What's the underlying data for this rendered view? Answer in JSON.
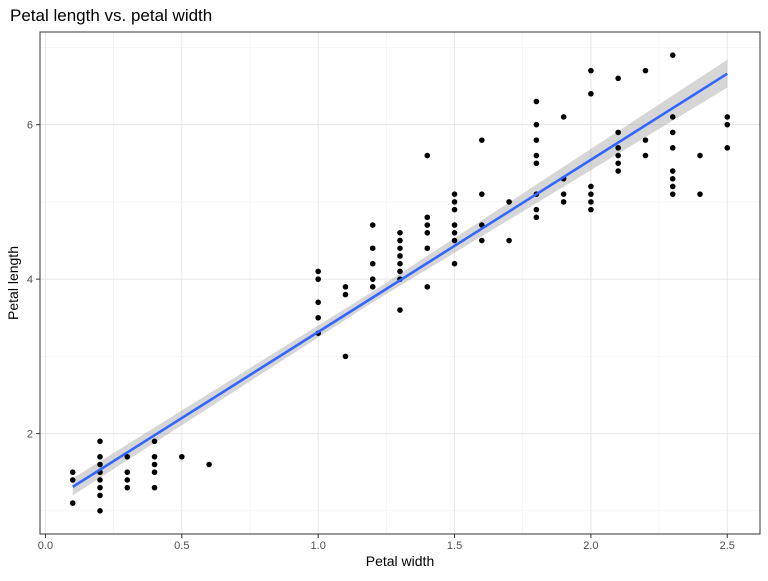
{
  "chart_data": {
    "type": "scatter",
    "title": "Petal length vs. petal width",
    "xlabel": "Petal width",
    "ylabel": "Petal length",
    "xlim": [
      -0.02,
      2.62
    ],
    "ylim": [
      0.7,
      7.2
    ],
    "x_ticks": [
      0.0,
      0.5,
      1.0,
      1.5,
      2.0,
      2.5
    ],
    "x_tick_labels": [
      "0.0",
      "0.5",
      "1.0",
      "1.5",
      "2.0",
      "2.5"
    ],
    "y_ticks": [
      2,
      4,
      6
    ],
    "y_tick_labels": [
      "2",
      "4",
      "6"
    ],
    "grid": true,
    "point_color": "#000000",
    "series": [
      {
        "type": "scatter",
        "points": [
          [
            0.1,
            1.1
          ],
          [
            0.1,
            1.4
          ],
          [
            0.1,
            1.5
          ],
          [
            0.2,
            1.0
          ],
          [
            0.2,
            1.2
          ],
          [
            0.2,
            1.3
          ],
          [
            0.2,
            1.4
          ],
          [
            0.2,
            1.5
          ],
          [
            0.2,
            1.6
          ],
          [
            0.2,
            1.7
          ],
          [
            0.2,
            1.9
          ],
          [
            0.3,
            1.3
          ],
          [
            0.3,
            1.4
          ],
          [
            0.3,
            1.5
          ],
          [
            0.3,
            1.7
          ],
          [
            0.4,
            1.3
          ],
          [
            0.4,
            1.5
          ],
          [
            0.4,
            1.6
          ],
          [
            0.4,
            1.7
          ],
          [
            0.4,
            1.9
          ],
          [
            0.5,
            1.7
          ],
          [
            0.6,
            1.6
          ],
          [
            1.0,
            3.3
          ],
          [
            1.0,
            3.5
          ],
          [
            1.0,
            3.7
          ],
          [
            1.0,
            4.0
          ],
          [
            1.0,
            4.1
          ],
          [
            1.1,
            3.0
          ],
          [
            1.1,
            3.8
          ],
          [
            1.1,
            3.9
          ],
          [
            1.2,
            3.9
          ],
          [
            1.2,
            4.0
          ],
          [
            1.2,
            4.2
          ],
          [
            1.2,
            4.4
          ],
          [
            1.2,
            4.7
          ],
          [
            1.3,
            3.6
          ],
          [
            1.3,
            4.0
          ],
          [
            1.3,
            4.1
          ],
          [
            1.3,
            4.2
          ],
          [
            1.3,
            4.3
          ],
          [
            1.3,
            4.4
          ],
          [
            1.3,
            4.5
          ],
          [
            1.3,
            4.6
          ],
          [
            1.4,
            3.9
          ],
          [
            1.4,
            4.4
          ],
          [
            1.4,
            4.6
          ],
          [
            1.4,
            4.7
          ],
          [
            1.4,
            4.8
          ],
          [
            1.4,
            5.6
          ],
          [
            1.5,
            4.2
          ],
          [
            1.5,
            4.5
          ],
          [
            1.5,
            4.6
          ],
          [
            1.5,
            4.7
          ],
          [
            1.5,
            4.9
          ],
          [
            1.5,
            5.0
          ],
          [
            1.5,
            5.1
          ],
          [
            1.6,
            4.5
          ],
          [
            1.6,
            4.7
          ],
          [
            1.6,
            5.1
          ],
          [
            1.6,
            5.8
          ],
          [
            1.7,
            4.5
          ],
          [
            1.7,
            5.0
          ],
          [
            1.8,
            4.8
          ],
          [
            1.8,
            4.9
          ],
          [
            1.8,
            5.1
          ],
          [
            1.8,
            5.5
          ],
          [
            1.8,
            5.6
          ],
          [
            1.8,
            5.8
          ],
          [
            1.8,
            6.0
          ],
          [
            1.8,
            6.3
          ],
          [
            1.9,
            5.0
          ],
          [
            1.9,
            5.1
          ],
          [
            1.9,
            5.3
          ],
          [
            1.9,
            6.1
          ],
          [
            2.0,
            4.9
          ],
          [
            2.0,
            5.0
          ],
          [
            2.0,
            5.1
          ],
          [
            2.0,
            5.2
          ],
          [
            2.0,
            6.4
          ],
          [
            2.0,
            6.7
          ],
          [
            2.1,
            5.4
          ],
          [
            2.1,
            5.5
          ],
          [
            2.1,
            5.6
          ],
          [
            2.1,
            5.7
          ],
          [
            2.1,
            5.9
          ],
          [
            2.1,
            6.6
          ],
          [
            2.2,
            5.6
          ],
          [
            2.2,
            5.8
          ],
          [
            2.2,
            6.7
          ],
          [
            2.3,
            5.1
          ],
          [
            2.3,
            5.2
          ],
          [
            2.3,
            5.3
          ],
          [
            2.3,
            5.4
          ],
          [
            2.3,
            5.7
          ],
          [
            2.3,
            5.9
          ],
          [
            2.3,
            6.1
          ],
          [
            2.3,
            6.9
          ],
          [
            2.4,
            5.1
          ],
          [
            2.4,
            5.6
          ],
          [
            2.5,
            5.7
          ],
          [
            2.5,
            6.0
          ],
          [
            2.5,
            6.1
          ]
        ]
      },
      {
        "type": "line",
        "line_color": "#3366FF",
        "band_color": "#999999",
        "points": [
          [
            0.1,
            1.31
          ],
          [
            2.5,
            6.66
          ]
        ],
        "band_lower": [
          [
            0.1,
            1.2
          ],
          [
            1.2,
            3.7
          ],
          [
            2.5,
            6.48
          ]
        ],
        "band_upper": [
          [
            0.1,
            1.42
          ],
          [
            1.2,
            3.84
          ],
          [
            2.5,
            6.84
          ]
        ]
      }
    ]
  }
}
